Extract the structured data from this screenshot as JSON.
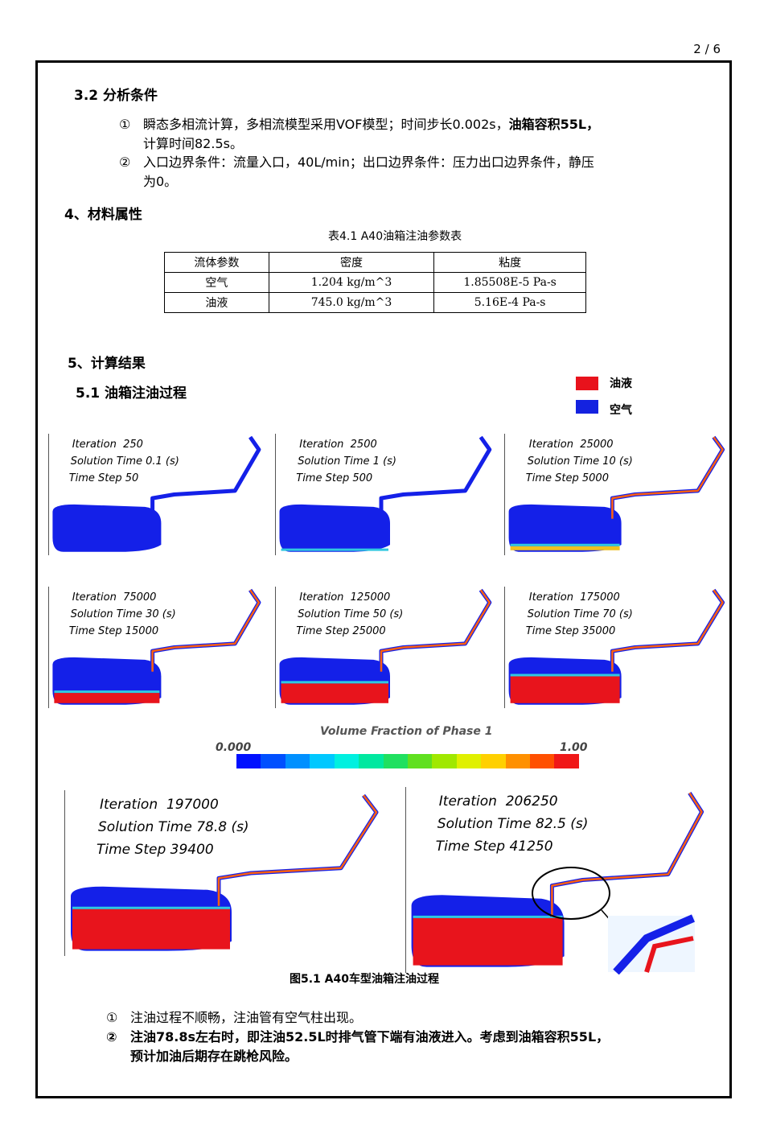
{
  "page": {
    "current": "2",
    "separator": "/",
    "total": "6"
  },
  "section_3_2": {
    "title": "3.2 分析条件",
    "items": [
      {
        "num": "①",
        "text_normal": "瞬态多相流计算，多相流模型采用VOF模型；时间步长0.002s，",
        "text_bold": "油箱容积55L，",
        "text_line2": "计算时间82.5s。"
      },
      {
        "num": "②",
        "text": "入口边界条件：流量入口，40L/min；出口边界条件：压力出口边界条件，静压",
        "text_line2": "为0。"
      }
    ]
  },
  "section_4": {
    "title": "4、材料属性",
    "table_caption": "表4.1  A40油箱注油参数表",
    "headers": [
      "流体参数",
      "密度",
      "粘度"
    ],
    "rows": [
      [
        "空气",
        "1.204 kg/m^3",
        "1.85508E-5 Pa-s"
      ],
      [
        "油液",
        "745.0 kg/m^3",
        "5.16E-4 Pa-s"
      ]
    ]
  },
  "section_5": {
    "title": "5、计算结果",
    "sub_title": "5.1 油箱注油过程",
    "legend": [
      {
        "label": "油液",
        "color": "#e8121c"
      },
      {
        "label": "空气",
        "color": "#1422e0"
      }
    ],
    "panels": [
      {
        "iteration": "Iteration  250",
        "time": "Solution Time 0.1 (s)",
        "step": "Time Step 50",
        "fill": 0.0
      },
      {
        "iteration": "Iteration  2500",
        "time": "Solution Time 1 (s)",
        "step": "Time Step 500",
        "fill": 0.02
      },
      {
        "iteration": "Iteration  25000",
        "time": "Solution Time 10 (s)",
        "step": "Time Step 5000",
        "fill": 0.12
      },
      {
        "iteration": "Iteration  75000",
        "time": "Solution Time 30 (s)",
        "step": "Time Step 15000",
        "fill": 0.25
      },
      {
        "iteration": "Iteration  125000",
        "time": "Solution Time 50 (s)",
        "step": "Time Step 25000",
        "fill": 0.45
      },
      {
        "iteration": "Iteration  175000",
        "time": "Solution Time 70 (s)",
        "step": "Time Step 35000",
        "fill": 0.6
      },
      {
        "iteration": "Iteration  197000",
        "time": "Solution Time 78.8 (s)",
        "step": "Time Step 39400",
        "fill": 0.65
      },
      {
        "iteration": "Iteration  206250",
        "time": "Solution Time 82.5 (s)",
        "step": "Time Step 41250",
        "fill": 0.68
      }
    ],
    "colorbar": {
      "title": "Volume Fraction of Phase 1",
      "min": "0.000",
      "max": "1.00"
    },
    "figure_caption": "图5.1 A40车型油箱注油过程",
    "conclusions": [
      {
        "num": "①",
        "text": "注油过程不顺畅，注油管有空气柱出现。"
      },
      {
        "num": "②",
        "text": "注油78.8s左右时，即注油52.5L时排气管下端有油液进入。考虑到油箱容积55L，",
        "text_line2": "预计加油后期存在跳枪风险。"
      }
    ]
  }
}
